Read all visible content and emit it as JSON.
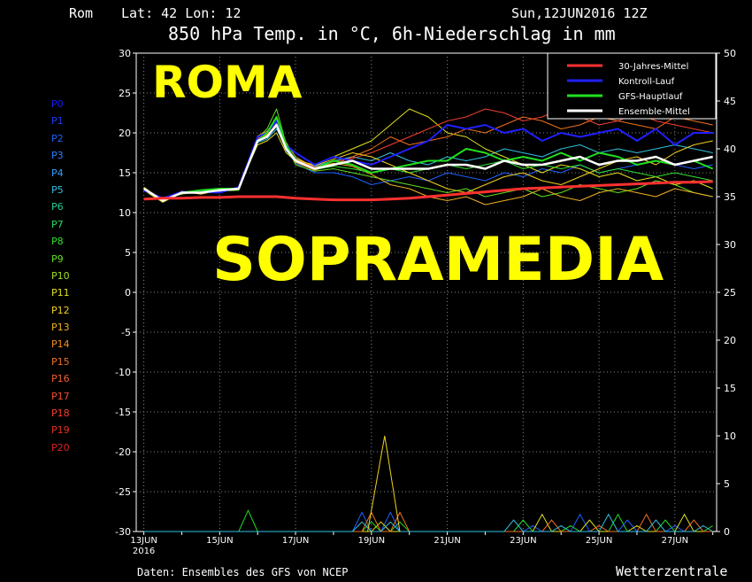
{
  "header": {
    "location": "Rom",
    "coords": "Lat: 42 Lon: 12",
    "run": "Sun,12JUN2016 12Z",
    "title": "850 hPa Temp. in °C, 6h-Niederschlag in mm"
  },
  "footer": {
    "source": "Daten: Ensembles des GFS von NCEP",
    "brand": "Wetterzentrale"
  },
  "overlay": {
    "city": "ROMA",
    "label": "SOPRAMEDIA"
  },
  "members": [
    {
      "name": "P0",
      "color": "#1a1aff"
    },
    {
      "name": "P1",
      "color": "#1a3cff"
    },
    {
      "name": "P2",
      "color": "#2060ff"
    },
    {
      "name": "P3",
      "color": "#2a80ff"
    },
    {
      "name": "P4",
      "color": "#30a0ff"
    },
    {
      "name": "P5",
      "color": "#30c0e0"
    },
    {
      "name": "P6",
      "color": "#20d090"
    },
    {
      "name": "P7",
      "color": "#20e060"
    },
    {
      "name": "P8",
      "color": "#30e030"
    },
    {
      "name": "P9",
      "color": "#60e020"
    },
    {
      "name": "P10",
      "color": "#a0e020"
    },
    {
      "name": "P11",
      "color": "#e0e020"
    },
    {
      "name": "P12",
      "color": "#f0d020"
    },
    {
      "name": "P13",
      "color": "#f0b020"
    },
    {
      "name": "P14",
      "color": "#f09020"
    },
    {
      "name": "P15",
      "color": "#f07020"
    },
    {
      "name": "P16",
      "color": "#f06030"
    },
    {
      "name": "P17",
      "color": "#f05030"
    },
    {
      "name": "P18",
      "color": "#f04030"
    },
    {
      "name": "P19",
      "color": "#e83020"
    },
    {
      "name": "P20",
      "color": "#e02020"
    }
  ],
  "chart_data": {
    "type": "line",
    "title": "850 hPa Temp. in °C, 6h-Niederschlag in mm",
    "x_ticks": [
      "13JUN",
      "15JUN",
      "17JUN",
      "19JUN",
      "21JUN",
      "23JUN",
      "25JUN",
      "27JUN"
    ],
    "x_year_label": "2016",
    "x_range_days": [
      12.8,
      28.1
    ],
    "y_left": {
      "range": [
        -30,
        30
      ],
      "ticks": [
        30,
        25,
        20,
        15,
        10,
        5,
        0,
        -5,
        -10,
        -15,
        -20,
        -25,
        -30
      ]
    },
    "y_right": {
      "range": [
        0,
        50
      ],
      "ticks": [
        50,
        45,
        40,
        35,
        30,
        25,
        20,
        15,
        10,
        5,
        0
      ]
    },
    "grid": true,
    "legend_position": "top-right",
    "legend": [
      {
        "label": "30-Jahres-Mittel",
        "color": "#ff3030"
      },
      {
        "label": "Kontroll-Lauf",
        "color": "#2020ff"
      },
      {
        "label": "GFS-Hauptlauf",
        "color": "#20e020"
      },
      {
        "label": "Ensemble-Mittel",
        "color": "#ffffff"
      }
    ],
    "x_days": [
      13,
      13.5,
      14,
      14.5,
      15,
      15.5,
      16,
      16.25,
      16.5,
      16.75,
      17,
      17.5,
      18,
      18.5,
      19,
      19.5,
      20,
      20.5,
      21,
      21.5,
      22,
      22.5,
      23,
      23.5,
      24,
      24.5,
      25,
      25.5,
      26,
      26.5,
      27,
      27.5,
      28
    ],
    "series": [
      {
        "name": "30-Jahres-Mittel",
        "values": [
          11.7,
          11.8,
          11.8,
          11.9,
          11.9,
          12.0,
          12.0,
          12.0,
          12.0,
          11.9,
          11.8,
          11.7,
          11.6,
          11.6,
          11.6,
          11.7,
          11.8,
          12.0,
          12.2,
          12.4,
          12.6,
          12.8,
          13.0,
          13.1,
          13.2,
          13.3,
          13.4,
          13.5,
          13.6,
          13.7,
          13.8,
          13.8,
          13.9
        ]
      },
      {
        "name": "Ensemble-Mittel",
        "values": [
          13.0,
          11.5,
          12.5,
          12.5,
          12.8,
          13.0,
          19.0,
          19.5,
          21.0,
          18.0,
          16.5,
          15.5,
          16.0,
          16.5,
          15.5,
          15.5,
          15.5,
          15.5,
          16.0,
          16.0,
          15.5,
          16.5,
          16.0,
          16.0,
          16.5,
          17.0,
          16.0,
          16.5,
          16.5,
          17.0,
          16.0,
          16.5,
          17.0
        ]
      },
      {
        "name": "Kontroll-Lauf",
        "values": [
          12.8,
          11.8,
          12.6,
          12.6,
          12.5,
          13.2,
          19.5,
          20.0,
          21.5,
          18.5,
          17.5,
          16.0,
          17.0,
          16.5,
          16.0,
          17.0,
          18.0,
          19.0,
          21.0,
          20.5,
          21.0,
          20.0,
          20.5,
          19.0,
          20.0,
          19.5,
          20.0,
          20.5,
          19.0,
          20.5,
          18.5,
          20.0,
          20.0
        ]
      },
      {
        "name": "GFS-Hauptlauf",
        "values": [
          13.0,
          11.5,
          12.5,
          12.8,
          13.0,
          13.0,
          19.0,
          20.0,
          22.0,
          18.5,
          16.5,
          15.5,
          16.5,
          16.0,
          15.0,
          15.5,
          16.0,
          16.5,
          16.5,
          18.0,
          17.5,
          16.5,
          17.0,
          16.5,
          17.5,
          16.5,
          17.5,
          17.0,
          16.0,
          16.5,
          16.0,
          16.5,
          15.5
        ]
      }
    ],
    "ensemble_members": [
      {
        "color": "#2060ff",
        "values": [
          12.9,
          11.4,
          12.4,
          12.6,
          12.6,
          13.0,
          19.2,
          19.6,
          21.2,
          17.8,
          16.2,
          15.0,
          15.0,
          14.5,
          13.5,
          14.0,
          14.5,
          14.0,
          15.0,
          14.5,
          14.0,
          15.0,
          14.5,
          15.5,
          15.0,
          16.0,
          15.0,
          15.5,
          16.0,
          16.5,
          16.0,
          15.5,
          16.0
        ]
      },
      {
        "color": "#30c0e0",
        "values": [
          13.1,
          11.6,
          12.6,
          12.4,
          12.9,
          13.1,
          18.8,
          19.2,
          20.5,
          18.2,
          16.8,
          15.8,
          16.5,
          17.0,
          16.5,
          17.5,
          16.5,
          16.0,
          17.0,
          16.5,
          17.0,
          18.0,
          17.5,
          17.0,
          18.0,
          18.5,
          17.5,
          18.0,
          17.5,
          18.0,
          18.5,
          18.0,
          17.5
        ]
      },
      {
        "color": "#60e020",
        "values": [
          13.0,
          11.7,
          12.3,
          12.7,
          12.7,
          12.8,
          19.4,
          20.5,
          23.0,
          18.6,
          16.0,
          15.2,
          15.5,
          15.0,
          14.5,
          14.0,
          13.5,
          13.0,
          12.5,
          13.0,
          12.0,
          12.5,
          13.0,
          12.0,
          12.5,
          13.5,
          13.0,
          12.5,
          13.0,
          14.0,
          13.5,
          12.5,
          12.0
        ]
      },
      {
        "color": "#e0e020",
        "values": [
          12.8,
          11.3,
          12.5,
          12.5,
          12.6,
          13.2,
          18.5,
          19.0,
          20.0,
          17.5,
          16.5,
          16.0,
          17.0,
          18.0,
          19.0,
          21.0,
          23.0,
          22.0,
          20.0,
          19.5,
          18.0,
          17.0,
          16.0,
          15.0,
          16.0,
          15.5,
          14.5,
          15.0,
          14.0,
          14.5,
          13.5,
          14.0,
          13.0
        ]
      },
      {
        "color": "#f0b020",
        "values": [
          13.2,
          11.5,
          12.7,
          12.3,
          12.8,
          12.9,
          19.6,
          20.2,
          21.8,
          18.8,
          17.0,
          15.6,
          16.2,
          15.8,
          14.8,
          13.5,
          13.0,
          12.0,
          11.5,
          12.0,
          11.0,
          11.5,
          12.0,
          13.0,
          12.0,
          11.5,
          12.5,
          13.0,
          12.5,
          12.0,
          13.0,
          12.5,
          12.0
        ]
      },
      {
        "color": "#f07020",
        "values": [
          13.0,
          11.8,
          12.4,
          12.6,
          12.7,
          13.0,
          19.0,
          19.8,
          21.0,
          18.0,
          16.3,
          15.3,
          16.0,
          17.0,
          18.0,
          19.5,
          18.5,
          19.0,
          19.5,
          20.5,
          20.0,
          21.0,
          22.0,
          21.5,
          20.5,
          21.0,
          22.0,
          21.5,
          21.0,
          20.5,
          22.0,
          21.5,
          21.0
        ]
      },
      {
        "color": "#f04030",
        "values": [
          12.9,
          11.6,
          12.6,
          12.5,
          12.9,
          13.1,
          19.3,
          19.9,
          21.4,
          18.3,
          16.6,
          15.7,
          16.4,
          16.8,
          17.5,
          18.5,
          19.5,
          20.5,
          21.5,
          22.0,
          23.0,
          22.5,
          21.5,
          22.0,
          23.0,
          22.0,
          21.0,
          21.5,
          22.5,
          21.5,
          21.0,
          20.5,
          20.0
        ]
      },
      {
        "color": "#30e030",
        "values": [
          13.1,
          11.5,
          12.5,
          12.7,
          12.8,
          13.0,
          18.9,
          19.5,
          20.8,
          17.9,
          16.4,
          15.4,
          15.8,
          15.5,
          15.0,
          15.5,
          15.0,
          15.5,
          16.0,
          15.5,
          16.0,
          16.5,
          15.5,
          16.0,
          15.5,
          16.0,
          15.0,
          15.5,
          15.0,
          14.5,
          15.0,
          14.5,
          14.0
        ]
      },
      {
        "color": "#f0d020",
        "values": [
          13.0,
          11.4,
          12.6,
          12.6,
          12.7,
          12.9,
          19.1,
          19.7,
          21.1,
          18.1,
          16.7,
          15.9,
          16.7,
          17.5,
          17.0,
          16.0,
          15.0,
          14.0,
          13.0,
          12.5,
          13.5,
          14.5,
          15.0,
          14.0,
          13.5,
          14.5,
          15.5,
          16.5,
          17.0,
          16.0,
          17.5,
          18.5,
          19.0
        ]
      }
    ],
    "precip_peak": {
      "day": 19.35,
      "mm": 10
    }
  }
}
